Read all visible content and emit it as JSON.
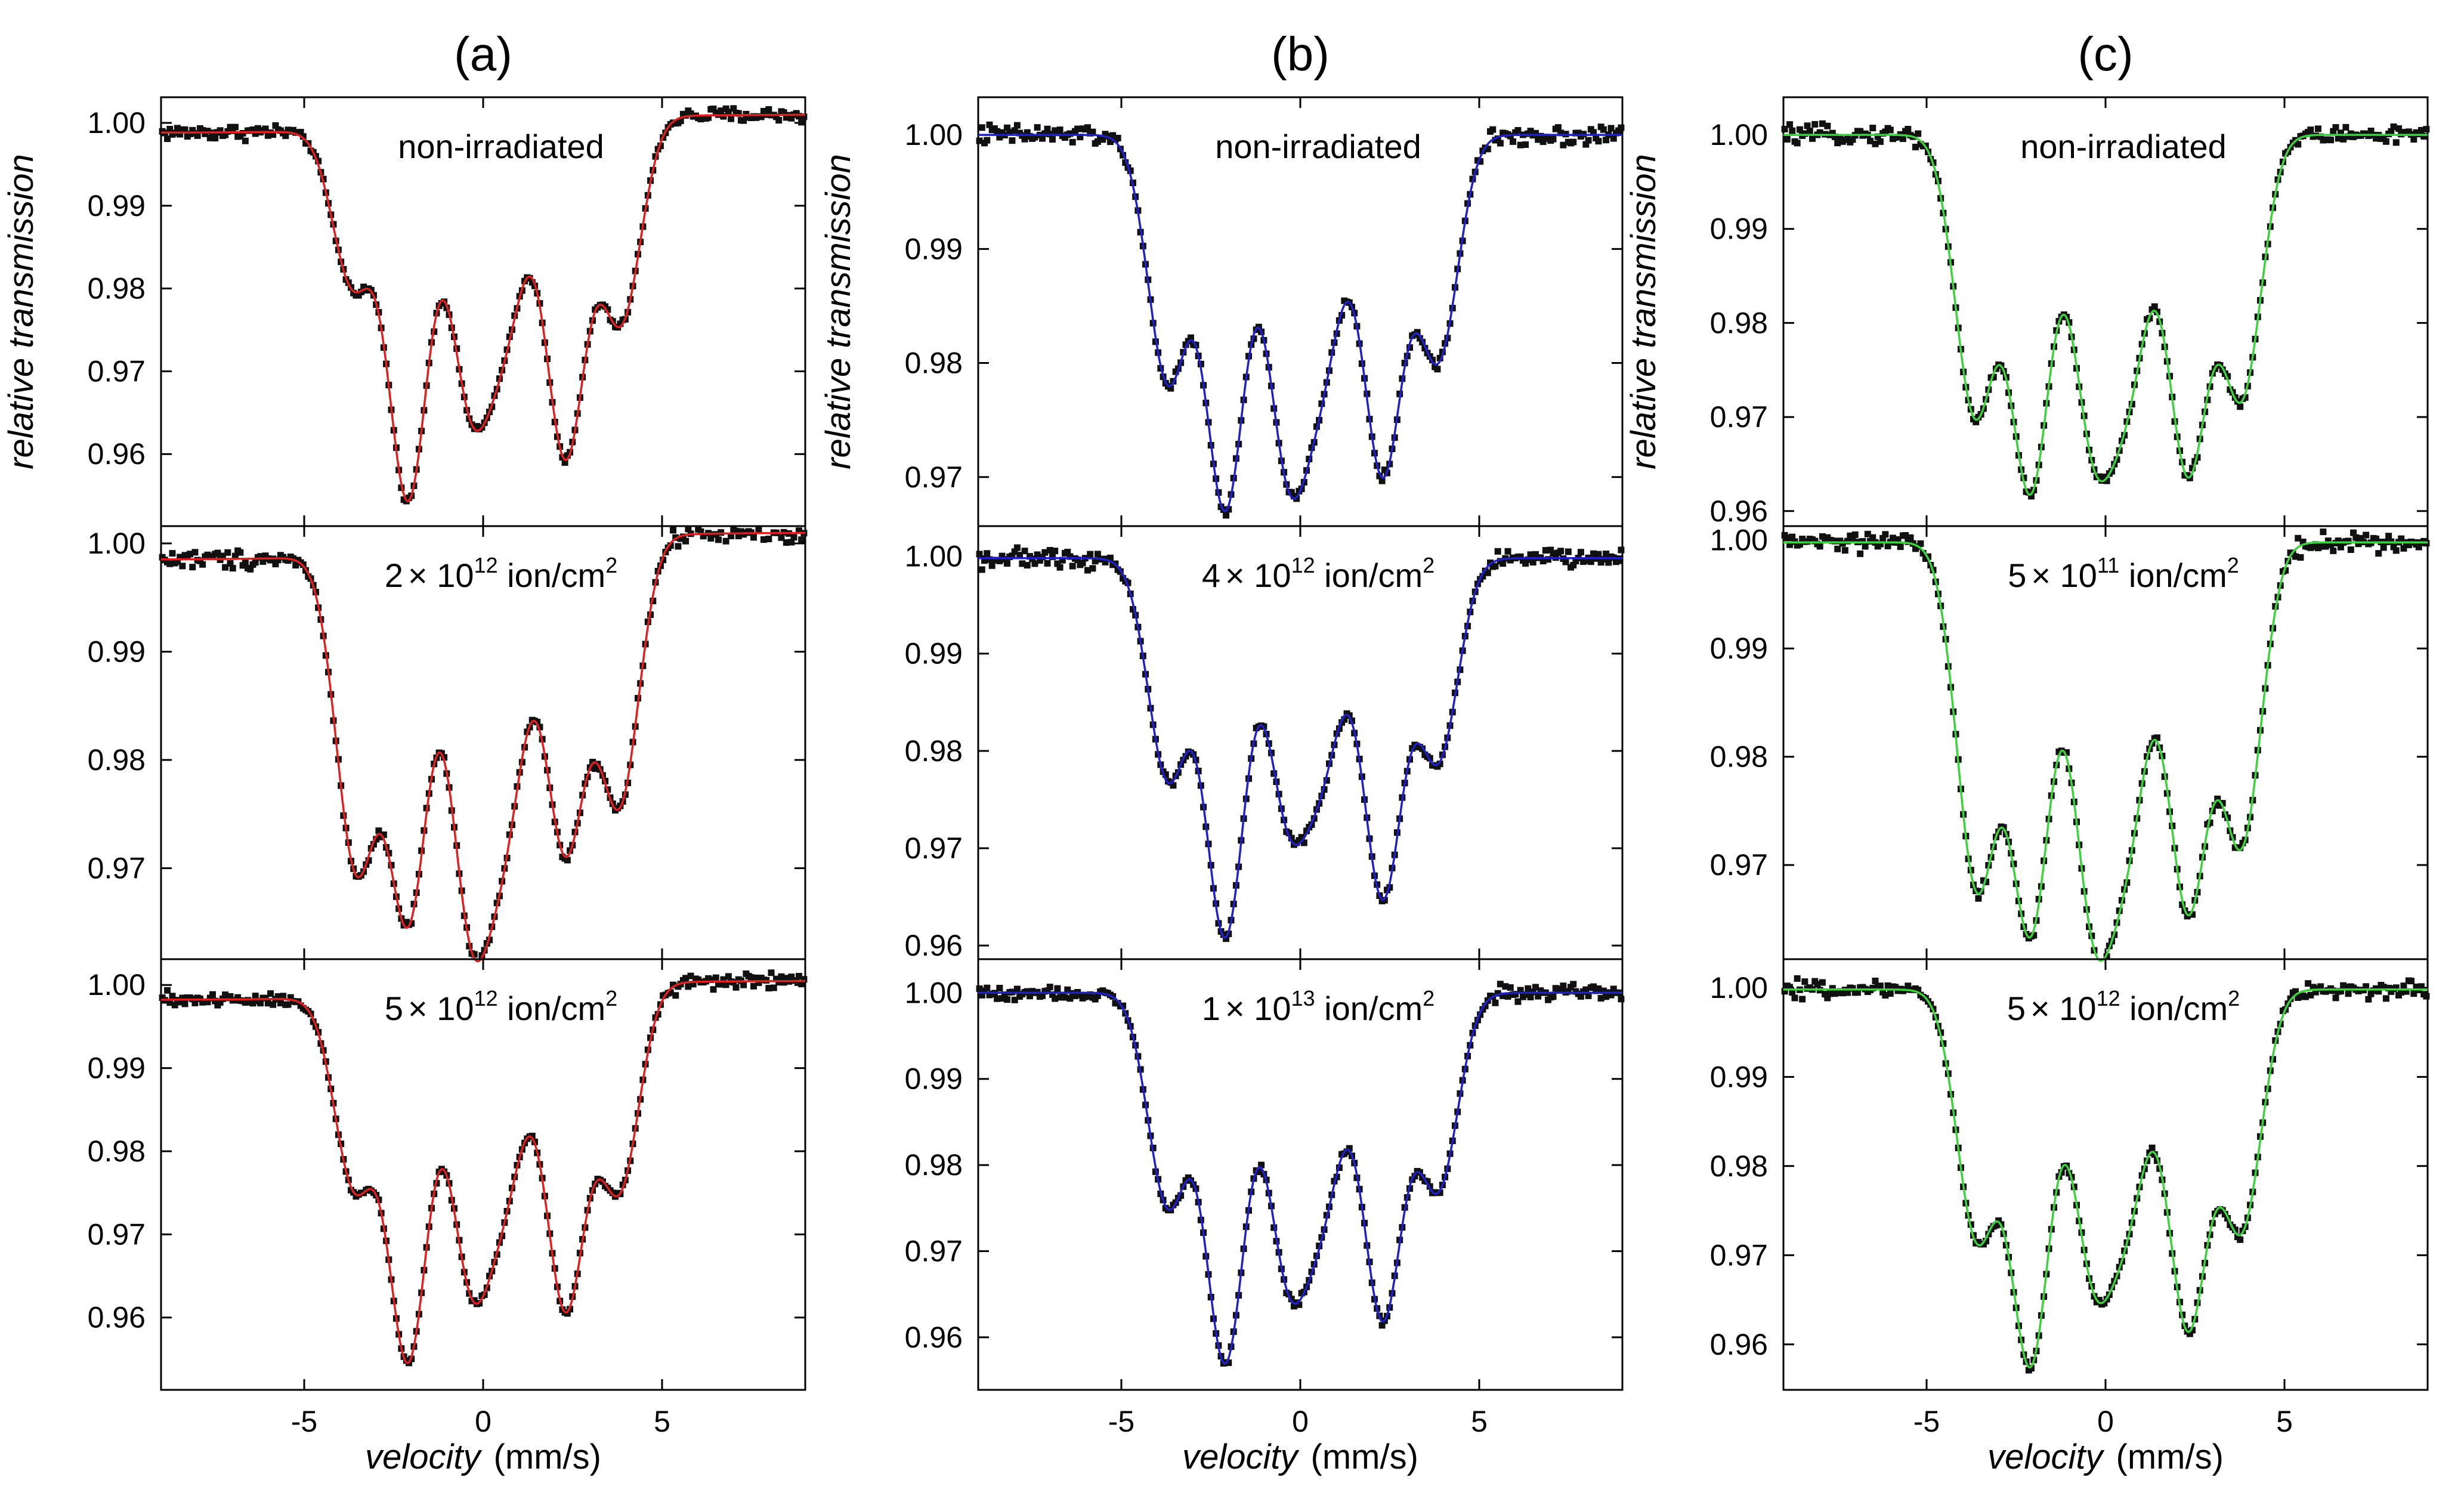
{
  "chart_data": {
    "type": "scatter",
    "x_axis": {
      "label_italic": "velocity",
      "label_unit": "(mm/s)",
      "xlim": [
        -9,
        9
      ],
      "ticks": [
        -5,
        0,
        5
      ]
    },
    "y_axis_label": "relative transmission",
    "columns": [
      {
        "title": "(a)",
        "fit_color": "#e02020",
        "panels": [
          {
            "label": "non-irradiated",
            "ylim": [
              0.9513,
              1.0031
            ],
            "ticks": [
              0.96,
              0.97,
              0.98,
              0.99,
              1.0
            ],
            "tick_labels": [
              "0.96",
              "0.97",
              "0.98",
              "0.99",
              "1.00"
            ],
            "baseline": 0.9988,
            "baseline_right": 1.001,
            "dips": [
              [
                -3.65,
                0.0185
              ],
              [
                -2.1,
                0.0445
              ],
              [
                -0.35,
                0.0315
              ],
              [
                0.65,
                0.0215
              ],
              [
                2.3,
                0.0405
              ],
              [
                3.85,
                0.0245
              ]
            ]
          },
          {
            "label_pre": "2",
            "label_mid": "× 10",
            "label_exp": "12",
            "label_unit": " ion/cm",
            "label_unit_exp": "2",
            "ylim": [
              0.9616,
              1.0016
            ],
            "ticks": [
              0.97,
              0.98,
              0.99,
              1.0
            ],
            "tick_labels": [
              "0.97",
              "0.98",
              "0.99",
              "1.00"
            ],
            "baseline": 0.9985,
            "baseline_right": 1.001,
            "dips": [
              [
                -3.55,
                0.0285
              ],
              [
                -2.1,
                0.0335
              ],
              [
                -0.35,
                0.0325
              ],
              [
                0.65,
                0.0225
              ],
              [
                2.3,
                0.0285
              ],
              [
                3.8,
                0.0245
              ]
            ]
          },
          {
            "label_pre": "5",
            "label_mid": "× 10",
            "label_exp": "12",
            "label_unit": " ion/cm",
            "label_unit_exp": "2",
            "ylim": [
              0.9513,
              1.0031
            ],
            "ticks": [
              0.96,
              0.97,
              0.98,
              0.99,
              1.0
            ],
            "tick_labels": [
              "0.96",
              "0.97",
              "0.98",
              "0.99",
              "1.00"
            ],
            "baseline": 0.9982,
            "baseline_right": 1.0005,
            "dips": [
              [
                -3.6,
                0.0225
              ],
              [
                -2.1,
                0.0435
              ],
              [
                -0.35,
                0.0325
              ],
              [
                0.65,
                0.0205
              ],
              [
                2.3,
                0.0385
              ],
              [
                3.8,
                0.0245
              ]
            ]
          }
        ]
      },
      {
        "title": "(b)",
        "fit_color": "#2020c8",
        "panels": [
          {
            "label": "non-irradiated",
            "ylim": [
              0.9657,
              1.0033
            ],
            "ticks": [
              0.97,
              0.98,
              0.99,
              1.0
            ],
            "tick_labels": [
              "0.97",
              "0.98",
              "0.99",
              "1.00"
            ],
            "baseline": 1.0,
            "baseline_right": 1.0,
            "dips": [
              [
                -3.7,
                0.0215
              ],
              [
                -2.1,
                0.0325
              ],
              [
                -0.35,
                0.0275
              ],
              [
                0.65,
                0.0175
              ],
              [
                2.3,
                0.0295
              ],
              [
                3.85,
                0.0195
              ]
            ]
          },
          {
            "label_pre": "4",
            "label_mid": "× 10",
            "label_exp": "12",
            "label_unit": " ion/cm",
            "label_unit_exp": "2",
            "ylim": [
              0.9586,
              1.0031
            ],
            "ticks": [
              0.96,
              0.97,
              0.98,
              0.99,
              1.0
            ],
            "tick_labels": [
              "0.96",
              "0.97",
              "0.98",
              "0.99",
              "1.00"
            ],
            "baseline": 0.9998,
            "baseline_right": 0.9998,
            "dips": [
              [
                -3.7,
                0.0225
              ],
              [
                -2.1,
                0.0385
              ],
              [
                -0.35,
                0.0245
              ],
              [
                0.65,
                0.0185
              ],
              [
                2.3,
                0.0345
              ],
              [
                3.85,
                0.0205
              ]
            ]
          },
          {
            "label_pre": "1",
            "label_mid": "× 10",
            "label_exp": "13",
            "label_unit": " ion/cm",
            "label_unit_exp": "2",
            "ylim": [
              0.9539,
              1.0039
            ],
            "ticks": [
              0.96,
              0.97,
              0.98,
              0.99,
              1.0
            ],
            "tick_labels": [
              "0.96",
              "0.97",
              "0.98",
              "0.99",
              "1.00"
            ],
            "baseline": 1.0,
            "baseline_right": 1.0,
            "dips": [
              [
                -3.7,
                0.0245
              ],
              [
                -2.1,
                0.0425
              ],
              [
                -0.35,
                0.0305
              ],
              [
                0.65,
                0.0215
              ],
              [
                2.3,
                0.0375
              ],
              [
                3.85,
                0.0225
              ]
            ]
          }
        ]
      },
      {
        "title": "(c)",
        "fit_color": "#3cd23c",
        "panels": [
          {
            "label": "non-irradiated",
            "ylim": [
              0.9584,
              1.004
            ],
            "ticks": [
              0.96,
              0.97,
              0.98,
              0.99,
              1.0
            ],
            "tick_labels": [
              "0.96",
              "0.97",
              "0.98",
              "0.99",
              "1.00"
            ],
            "baseline": 1.0,
            "baseline_right": 1.0,
            "dips": [
              [
                -3.65,
                0.0295
              ],
              [
                -2.1,
                0.0375
              ],
              [
                -0.35,
                0.0305
              ],
              [
                0.65,
                0.0235
              ],
              [
                2.3,
                0.0355
              ],
              [
                3.8,
                0.0275
              ]
            ]
          },
          {
            "label_pre": "5",
            "label_mid": "× 10",
            "label_exp": "11",
            "label_unit": " ion/cm",
            "label_unit_exp": "2",
            "ylim": [
              0.9613,
              1.0013
            ],
            "ticks": [
              0.97,
              0.98,
              0.99,
              1.0
            ],
            "tick_labels": [
              "0.97",
              "0.98",
              "0.99",
              "1.00"
            ],
            "baseline": 0.9998,
            "baseline_right": 0.9998,
            "dips": [
              [
                -3.6,
                0.0315
              ],
              [
                -2.1,
                0.0355
              ],
              [
                -0.35,
                0.0325
              ],
              [
                0.65,
                0.0235
              ],
              [
                2.3,
                0.0335
              ],
              [
                3.8,
                0.0275
              ]
            ]
          },
          {
            "label_pre": "5",
            "label_mid": "× 10",
            "label_exp": "12",
            "label_unit": " ion/cm",
            "label_unit_exp": "2",
            "ylim": [
              0.9549,
              1.0032
            ],
            "ticks": [
              0.96,
              0.97,
              0.98,
              0.99,
              1.0
            ],
            "tick_labels": [
              "0.96",
              "0.97",
              "0.98",
              "0.99",
              "1.00"
            ],
            "baseline": 0.9998,
            "baseline_right": 0.9998,
            "dips": [
              [
                -3.6,
                0.0275
              ],
              [
                -2.1,
                0.0415
              ],
              [
                -0.35,
                0.0295
              ],
              [
                0.65,
                0.0215
              ],
              [
                2.3,
                0.0375
              ],
              [
                3.8,
                0.0265
              ]
            ]
          }
        ]
      }
    ]
  }
}
